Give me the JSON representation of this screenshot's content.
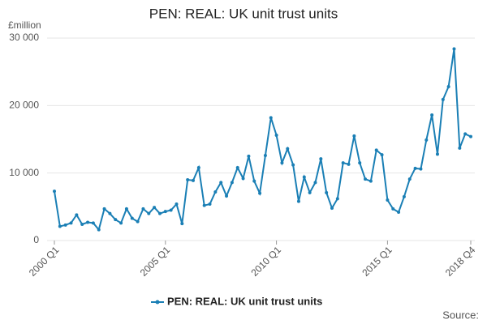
{
  "chart_data": {
    "type": "line",
    "title": "PEN: REAL: UK unit trust units",
    "y_unit_label": "£million",
    "source_label": "Source:",
    "categories": [
      "2000 Q1",
      null,
      null,
      null,
      null,
      null,
      null,
      null,
      null,
      null,
      null,
      null,
      null,
      null,
      null,
      null,
      null,
      null,
      null,
      null,
      "2005 Q1",
      null,
      null,
      null,
      null,
      null,
      null,
      null,
      null,
      null,
      null,
      null,
      null,
      null,
      null,
      null,
      null,
      null,
      null,
      null,
      "2010 Q1",
      null,
      null,
      null,
      null,
      null,
      null,
      null,
      null,
      null,
      null,
      null,
      null,
      null,
      null,
      null,
      null,
      null,
      null,
      null,
      "2015 Q1",
      null,
      null,
      null,
      null,
      null,
      null,
      null,
      null,
      null,
      null,
      null,
      null,
      null,
      null,
      "2018 Q4"
    ],
    "series": [
      {
        "name": "PEN: REAL: UK unit trust units",
        "color": "#1a7fb5",
        "values": [
          7300,
          2100,
          2300,
          2600,
          3800,
          2400,
          2700,
          2600,
          1600,
          4700,
          4000,
          3100,
          2600,
          4700,
          3300,
          2800,
          4700,
          4000,
          4900,
          4000,
          4300,
          4500,
          5400,
          2500,
          9000,
          8900,
          10800,
          5200,
          5400,
          7200,
          8600,
          6600,
          8600,
          10800,
          9200,
          12500,
          8800,
          7000,
          12600,
          18200,
          15600,
          11500,
          13600,
          11200,
          5800,
          9400,
          7100,
          8600,
          12100,
          7100,
          4800,
          6200,
          11500,
          11300,
          15500,
          11500,
          9100,
          8800,
          13400,
          12700,
          6000,
          4700,
          4200,
          6500,
          9100,
          10700,
          10600,
          14900,
          18600,
          12800,
          20900,
          22800,
          28400,
          13700,
          15800,
          15400
        ]
      }
    ],
    "ylim": [
      0,
      30000
    ],
    "yticks": [
      0,
      {
        "value": 10000,
        "label": "10 000"
      },
      {
        "value": 20000,
        "label": "20 000"
      },
      {
        "value": 30000,
        "label": "30 000"
      }
    ],
    "grid": true
  }
}
